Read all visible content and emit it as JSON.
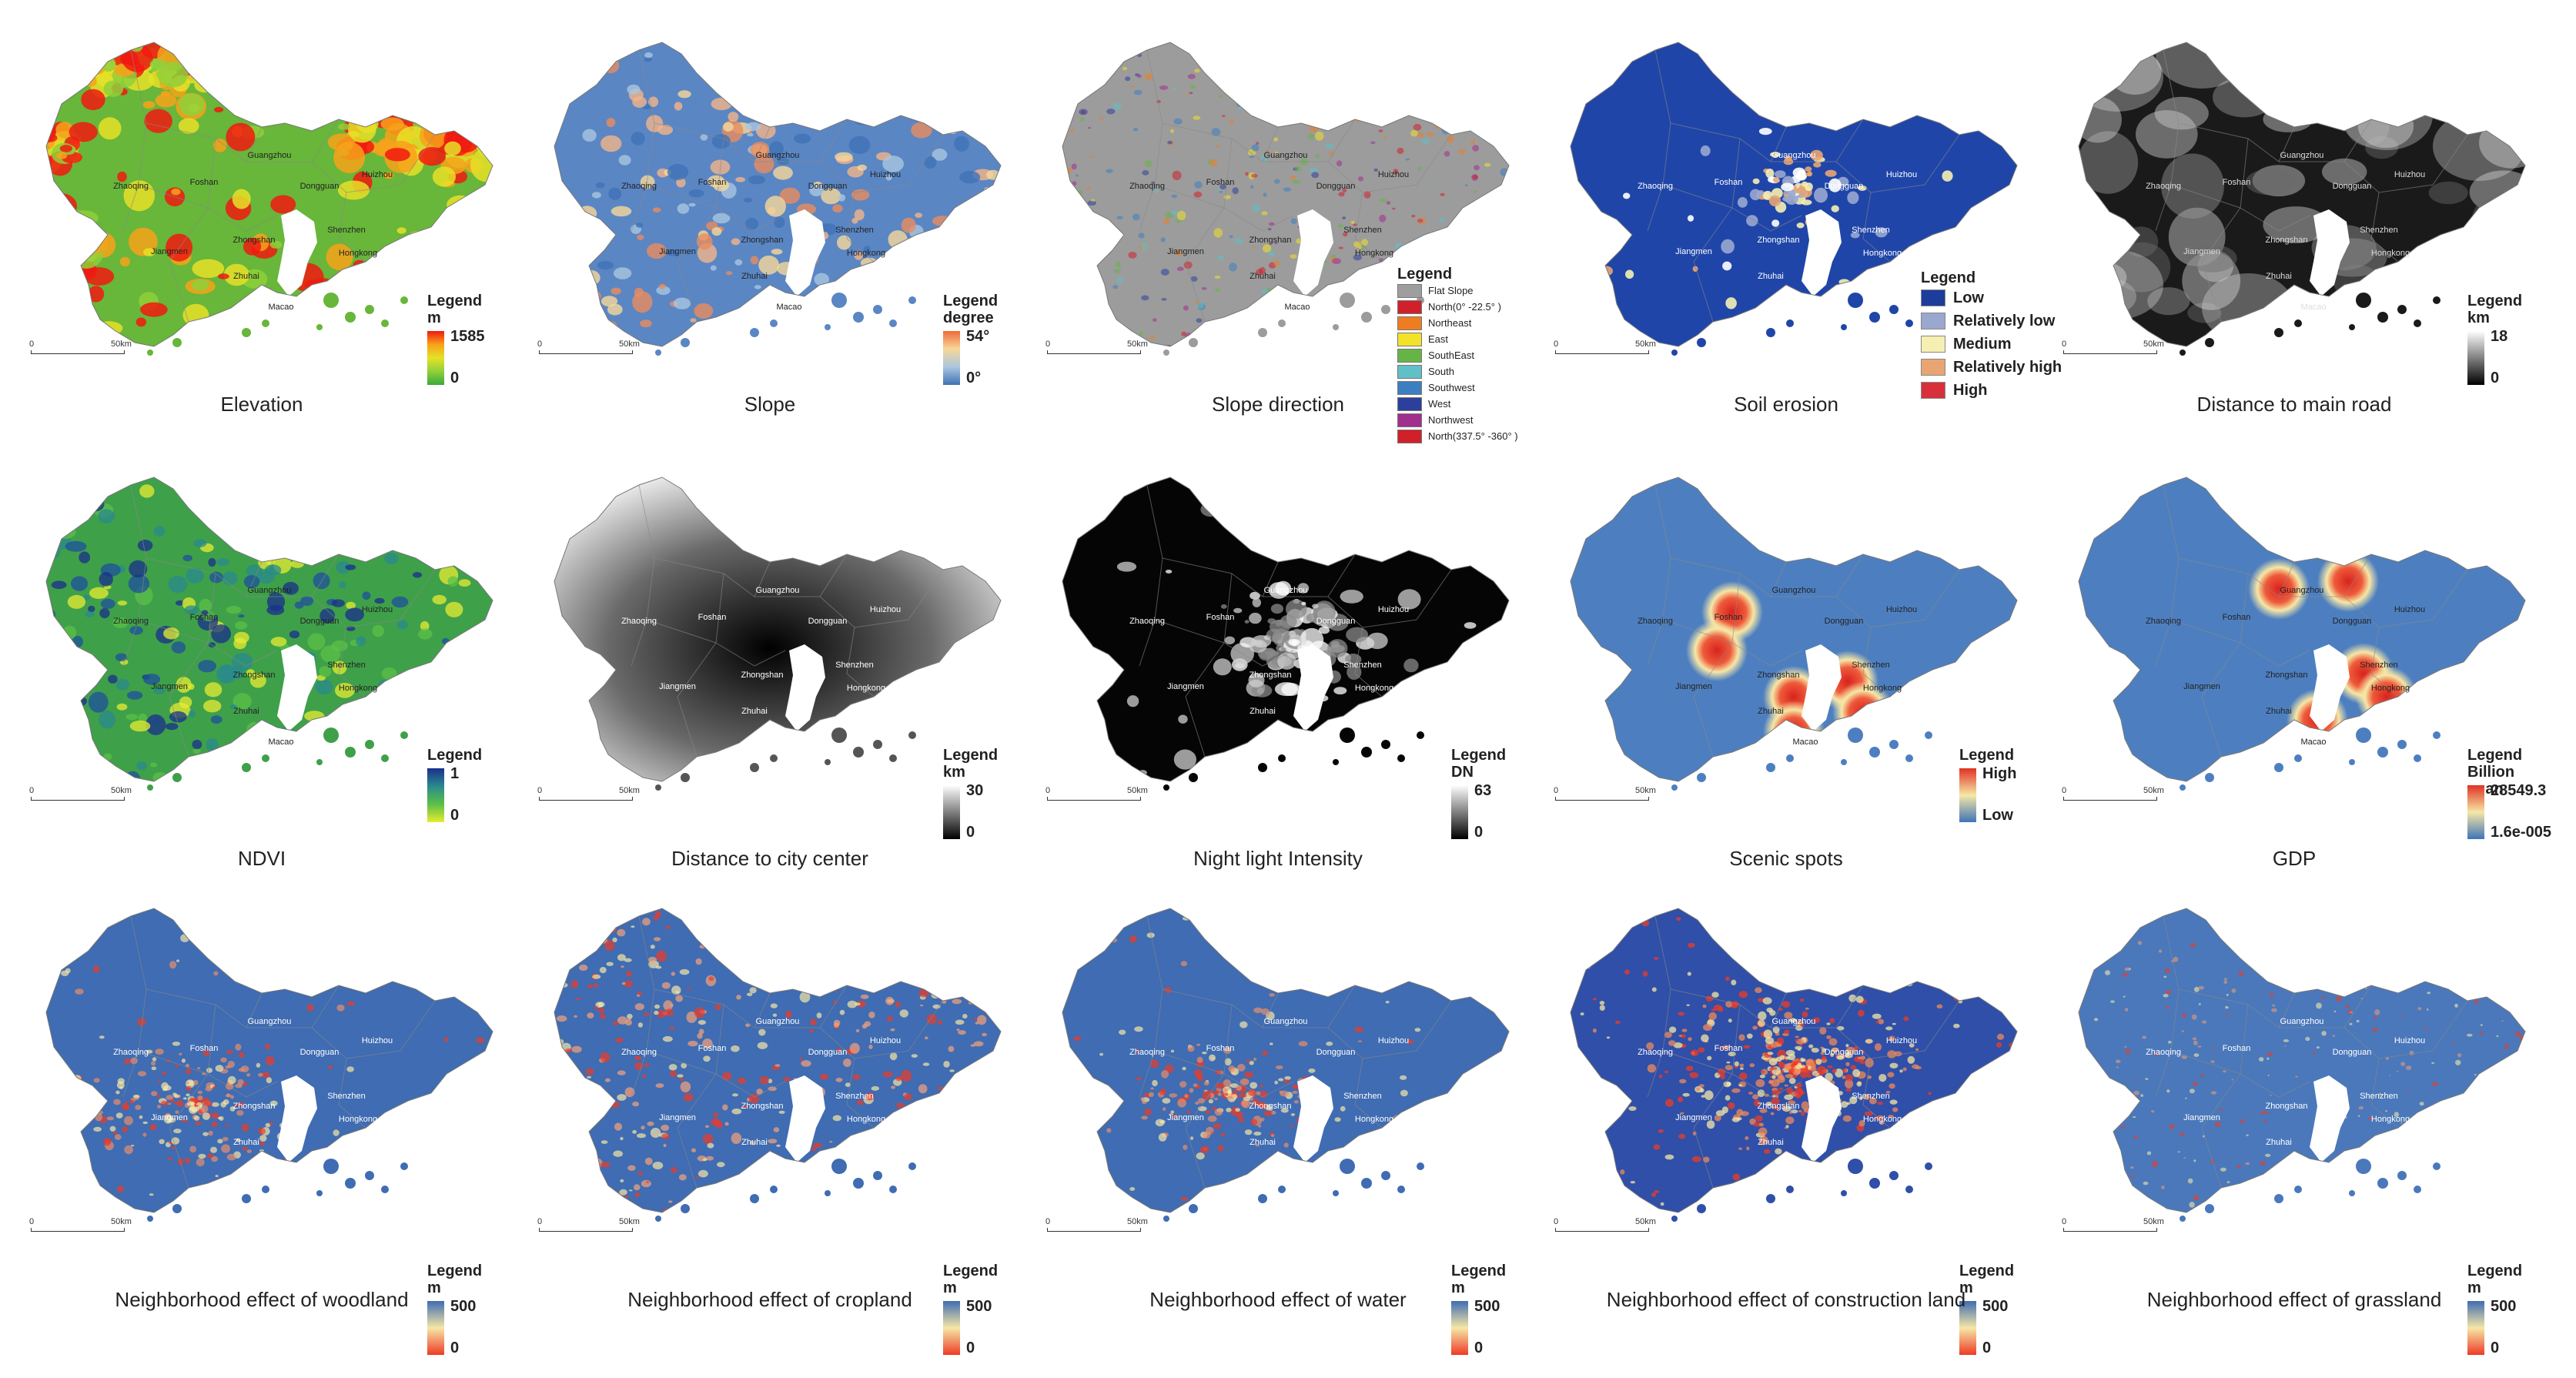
{
  "scalebar": {
    "start": "0",
    "end": "50km"
  },
  "cities": [
    "Zhaoqing",
    "Foshan",
    "Guangzhou",
    "Dongguan",
    "Huizhou",
    "Jiangmen",
    "Zhongshan",
    "Shenzhen",
    "Zhuhai",
    "Hongkong",
    "Macao"
  ],
  "panels": [
    {
      "caption": "Elevation",
      "legend": {
        "type": "ramp",
        "title": "Legend",
        "unit": "m",
        "max": "1585",
        "min": "0",
        "colors": [
          "#f11a10",
          "#f7a21a",
          "#e6e127",
          "#8fd03a",
          "#3aa93b"
        ]
      }
    },
    {
      "caption": "Slope",
      "legend": {
        "type": "ramp",
        "title": "Legend",
        "unit": "degree",
        "max": "54°",
        "min": "0°",
        "colors": [
          "#f06a3a",
          "#f6d79a",
          "#a9c6e0",
          "#3f72b6"
        ]
      }
    },
    {
      "caption": "Slope direction",
      "legend": {
        "type": "classes-small",
        "title": "Legend",
        "items": [
          {
            "label": "Flat Slope",
            "color": "#9e9e9e"
          },
          {
            "label": "North(0° -22.5° )",
            "color": "#d0202a"
          },
          {
            "label": "Northeast",
            "color": "#ee7d22"
          },
          {
            "label": "East",
            "color": "#f2e22a"
          },
          {
            "label": "SouthEast",
            "color": "#67b446"
          },
          {
            "label": "South",
            "color": "#60c0c6"
          },
          {
            "label": "Southwest",
            "color": "#3c7fc1"
          },
          {
            "label": "West",
            "color": "#2d3f9c"
          },
          {
            "label": "Northwest",
            "color": "#a12f8e"
          },
          {
            "label": "North(337.5° -360° )",
            "color": "#d0202a"
          }
        ]
      }
    },
    {
      "caption": "Soil erosion",
      "legend": {
        "type": "classes",
        "title": "Legend",
        "items": [
          {
            "label": "Low",
            "color": "#1d3d9c"
          },
          {
            "label": "Relatively low",
            "color": "#9aa7cf"
          },
          {
            "label": "Medium",
            "color": "#f5f0b2"
          },
          {
            "label": "Relatively high",
            "color": "#e8a573"
          },
          {
            "label": "High",
            "color": "#d7303a"
          }
        ]
      }
    },
    {
      "caption": "Distance to main road",
      "legend": {
        "type": "ramp",
        "title": "Legend",
        "unit": "km",
        "max": "18",
        "min": "0",
        "colors": [
          "#ffffff",
          "#808080",
          "#000000"
        ]
      }
    },
    {
      "caption": "NDVI",
      "legend": {
        "type": "ramp",
        "title": "Legend",
        "unit": "",
        "max": "1",
        "min": "0",
        "colors": [
          "#1a2f8c",
          "#2a8a8e",
          "#5cc047",
          "#e8ec31"
        ]
      }
    },
    {
      "caption": "Distance to city center",
      "legend": {
        "type": "ramp",
        "title": "Legend",
        "unit": "km",
        "max": "30",
        "min": "0",
        "colors": [
          "#ffffff",
          "#808080",
          "#000000"
        ]
      }
    },
    {
      "caption": "Night light Intensity",
      "legend": {
        "type": "ramp",
        "title": "Legend",
        "unit": "DN",
        "max": "63",
        "min": "0",
        "colors": [
          "#ffffff",
          "#808080",
          "#000000"
        ]
      }
    },
    {
      "caption": "Scenic spots",
      "legend": {
        "type": "ramp",
        "title": "Legend",
        "unit": "",
        "max": "High",
        "min": "Low",
        "colors": [
          "#e03225",
          "#f6e7a6",
          "#3f74b8"
        ]
      }
    },
    {
      "caption": "GDP",
      "legend": {
        "type": "ramp",
        "title": "Legend",
        "unit": "Billion yuan",
        "max": "28549.3",
        "min": "1.6e-005",
        "colors": [
          "#e03225",
          "#f6e7a6",
          "#3f74b8"
        ]
      }
    },
    {
      "caption": "Neighborhood effect of woodland",
      "legend": {
        "type": "ramp",
        "title": "Legend",
        "unit": "m",
        "max": "500",
        "min": "0",
        "colors": [
          "#3f6cb2",
          "#f6e7a6",
          "#ee3b26"
        ]
      }
    },
    {
      "caption": "Neighborhood effect of cropland",
      "legend": {
        "type": "ramp",
        "title": "Legend",
        "unit": "m",
        "max": "500",
        "min": "0",
        "colors": [
          "#3f6cb2",
          "#f6e7a6",
          "#ee3b26"
        ]
      }
    },
    {
      "caption": "Neighborhood effect of water",
      "legend": {
        "type": "ramp",
        "title": "Legend",
        "unit": "m",
        "max": "500",
        "min": "0",
        "colors": [
          "#3f6cb2",
          "#f6e7a6",
          "#ee3b26"
        ]
      }
    },
    {
      "caption": "Neighborhood effect of construction land",
      "legend": {
        "type": "ramp",
        "title": "Legend",
        "unit": "m",
        "max": "500",
        "min": "0",
        "colors": [
          "#3f6cb2",
          "#f6e7a6",
          "#ee3b26"
        ]
      }
    },
    {
      "caption": "Neighborhood effect of grassland",
      "legend": {
        "type": "ramp",
        "title": "Legend",
        "unit": "m",
        "max": "500",
        "min": "0",
        "colors": [
          "#3f6cb2",
          "#f6e7a6",
          "#ee3b26"
        ]
      }
    }
  ]
}
